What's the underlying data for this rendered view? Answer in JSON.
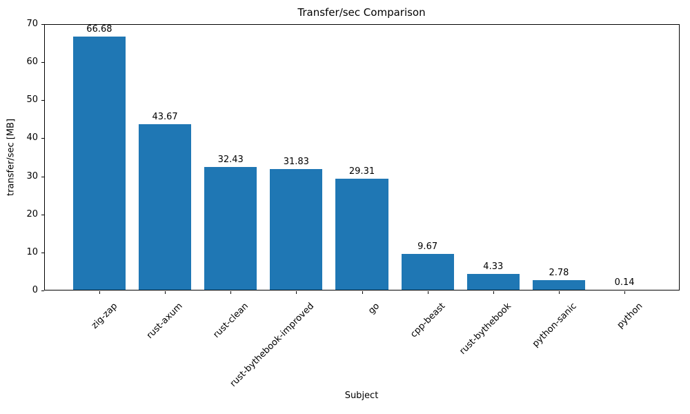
{
  "chart_data": {
    "type": "bar",
    "title": "Transfer/sec Comparison",
    "xlabel": "Subject",
    "ylabel": "transfer/sec [MB]",
    "categories": [
      "zig-zap",
      "rust-axum",
      "rust-clean",
      "rust-bythebook-improved",
      "go",
      "cpp-beast",
      "rust-bythebook",
      "python-sanic",
      "python"
    ],
    "values": [
      66.68,
      43.67,
      32.43,
      31.83,
      29.31,
      9.67,
      4.33,
      2.78,
      0.14
    ],
    "value_labels": [
      "66.68",
      "43.67",
      "32.43",
      "31.83",
      "29.31",
      "9.67",
      "4.33",
      "2.78",
      "0.14"
    ],
    "ylim": [
      0,
      70
    ],
    "yticks": [
      0,
      10,
      20,
      30,
      40,
      50,
      60,
      70
    ],
    "xtick_rotation_deg": 45,
    "bar_color": "#1f77b4",
    "background_color": "#ffffff",
    "text_color": "#000000",
    "grid": false,
    "legend": null
  }
}
